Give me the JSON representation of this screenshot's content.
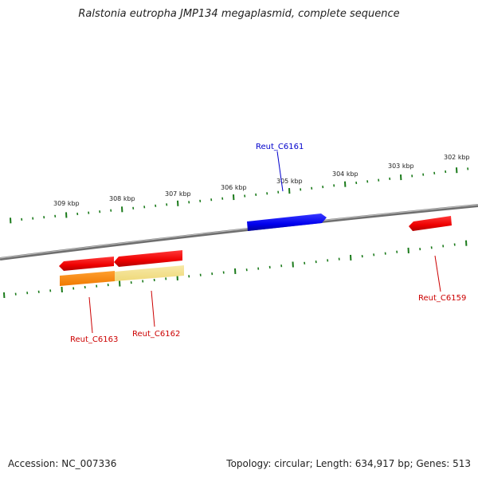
{
  "title": "Ralstonia eutropha JMP134 megaplasmid, complete sequence",
  "footer": {
    "accession": "Accession: NC_007336",
    "summary": "Topology: circular; Length: 634,917 bp; Genes: 513"
  },
  "colors": {
    "backbone": "#8c8c8c",
    "tick": "#1a7a1a",
    "forward_gene": "#0000ee",
    "reverse_gene": "#ee0000",
    "forward_label": "#0000cc",
    "reverse_label": "#cc0000",
    "orange_feature": "#ff8c00",
    "yellow_feature": "#f2e08a"
  },
  "tick_labels": [
    "309 kbp",
    "308 kbp",
    "307 kbp",
    "306 kbp",
    "305 kbp",
    "304 kbp",
    "303 kbp",
    "302 kbp"
  ],
  "genes": [
    {
      "name": "Reut_C6161",
      "strand": "forward"
    },
    {
      "name": "Reut_C6159",
      "strand": "reverse"
    },
    {
      "name": "Reut_C6162",
      "strand": "reverse"
    },
    {
      "name": "Reut_C6163",
      "strand": "reverse"
    }
  ]
}
